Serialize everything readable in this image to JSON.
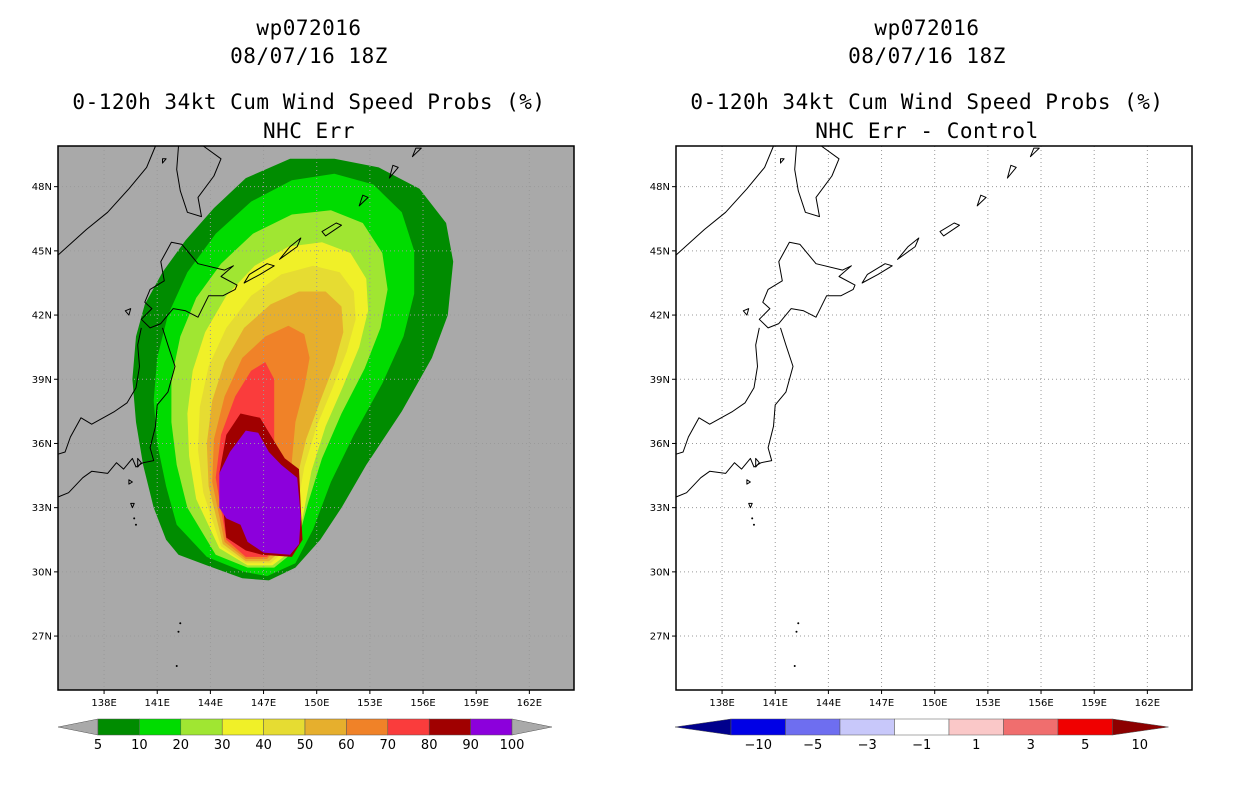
{
  "panels": [
    {
      "storm_id": "wp072016",
      "datetime": "08/07/16 18Z",
      "product": "0-120h 34kt Cum Wind Speed Probs (%)",
      "subtitle": "NHC Err",
      "background_color": "#a9a9a9",
      "colorbar": {
        "labels": [
          "5",
          "10",
          "20",
          "30",
          "40",
          "50",
          "60",
          "70",
          "80",
          "90",
          "100"
        ],
        "colors": [
          "#008c00",
          "#00dc00",
          "#a0e632",
          "#f0f028",
          "#e6dc32",
          "#e6af2d",
          "#f08228",
          "#fa3c3c",
          "#a00000",
          "#8c00dc"
        ],
        "under_color": "#a9a9a9",
        "over_color": "#a9a9a9"
      }
    },
    {
      "storm_id": "wp072016",
      "datetime": "08/07/16 18Z",
      "product": "0-120h 34kt Cum Wind Speed Probs (%)",
      "subtitle": "NHC Err - Control",
      "background_color": "#ffffff",
      "colorbar": {
        "labels": [
          "−10",
          "−5",
          "−3",
          "−1",
          "1",
          "3",
          "5",
          "10"
        ],
        "colors": [
          "#0000e6",
          "#6e6ef0",
          "#c8c8fa",
          "#ffffff",
          "#fac8c8",
          "#f06e6e",
          "#f00000"
        ],
        "under_color": "#00008c",
        "over_color": "#8c0000"
      }
    }
  ],
  "axes": {
    "lat_labels": [
      "48N",
      "45N",
      "42N",
      "39N",
      "36N",
      "33N",
      "30N",
      "27N"
    ],
    "lon_labels": [
      "138E",
      "141E",
      "144E",
      "147E",
      "150E",
      "153E",
      "156E",
      "159E",
      "162E"
    ]
  }
}
